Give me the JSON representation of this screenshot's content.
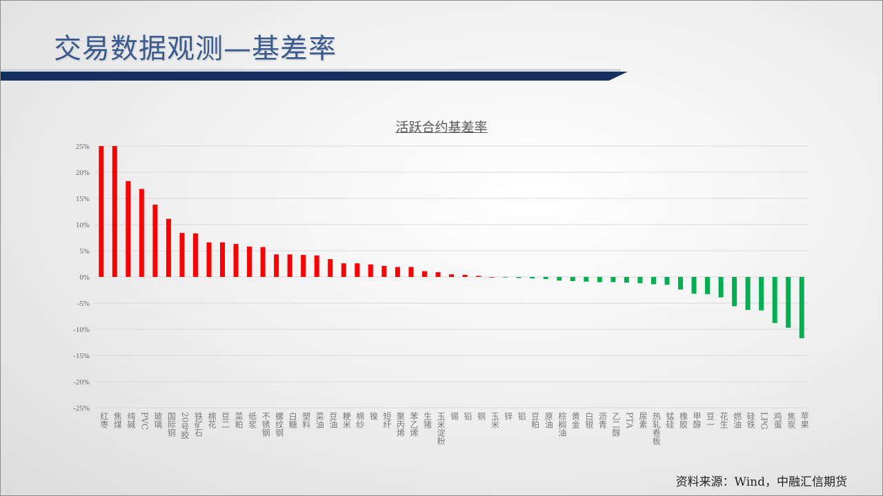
{
  "header": {
    "title": "交易数据观测—基差率"
  },
  "footer": {
    "source": "资料来源：Wind，中融汇信期货"
  },
  "colors": {
    "positive": "#ff0000",
    "negative": "#00b050",
    "title": "#3a5b8f",
    "header_bar": "#14305f"
  },
  "chart_data": {
    "type": "bar",
    "title": "活跃合约基差率",
    "xlabel": "",
    "ylabel": "",
    "ylim": [
      -0.25,
      0.25
    ],
    "yticks": [
      "25%",
      "20%",
      "15%",
      "10%",
      "5%",
      "0%",
      "-5%",
      "-10%",
      "-15%",
      "-20%",
      "-25%"
    ],
    "grid": true,
    "categories": [
      "红枣",
      "焦煤",
      "纯碱",
      "PVC",
      "玻璃",
      "国际铜",
      "20号胶",
      "铁矿石",
      "棉花",
      "豆二",
      "菜粕",
      "纸浆",
      "不锈钢",
      "螺纹钢",
      "白糖",
      "塑料",
      "菜油",
      "豆油",
      "粳米",
      "棉纱",
      "镍",
      "短纤",
      "聚丙烯",
      "苯乙烯",
      "生猪",
      "玉米淀粉",
      "锡",
      "铅",
      "铜",
      "玉米",
      "锌",
      "铝",
      "豆粕",
      "原油",
      "棕榈油",
      "黄金",
      "白银",
      "沥青",
      "乙二醇",
      "PTA",
      "尿素",
      "热轧卷板",
      "锰硅",
      "橡胶",
      "甲醇",
      "豆一",
      "花生",
      "燃油",
      "硅铁",
      "LPG",
      "鸡蛋",
      "焦炭",
      "苹果"
    ],
    "values": [
      0.25,
      0.25,
      0.183,
      0.168,
      0.138,
      0.111,
      0.084,
      0.083,
      0.066,
      0.066,
      0.063,
      0.058,
      0.057,
      0.043,
      0.043,
      0.042,
      0.041,
      0.034,
      0.026,
      0.026,
      0.024,
      0.021,
      0.019,
      0.019,
      0.011,
      0.009,
      0.005,
      0.004,
      0.002,
      0.0,
      -0.001,
      -0.002,
      -0.003,
      -0.004,
      -0.007,
      -0.008,
      -0.009,
      -0.01,
      -0.01,
      -0.011,
      -0.012,
      -0.014,
      -0.015,
      -0.024,
      -0.032,
      -0.033,
      -0.039,
      -0.056,
      -0.063,
      -0.064,
      -0.088,
      -0.097,
      -0.117
    ]
  }
}
